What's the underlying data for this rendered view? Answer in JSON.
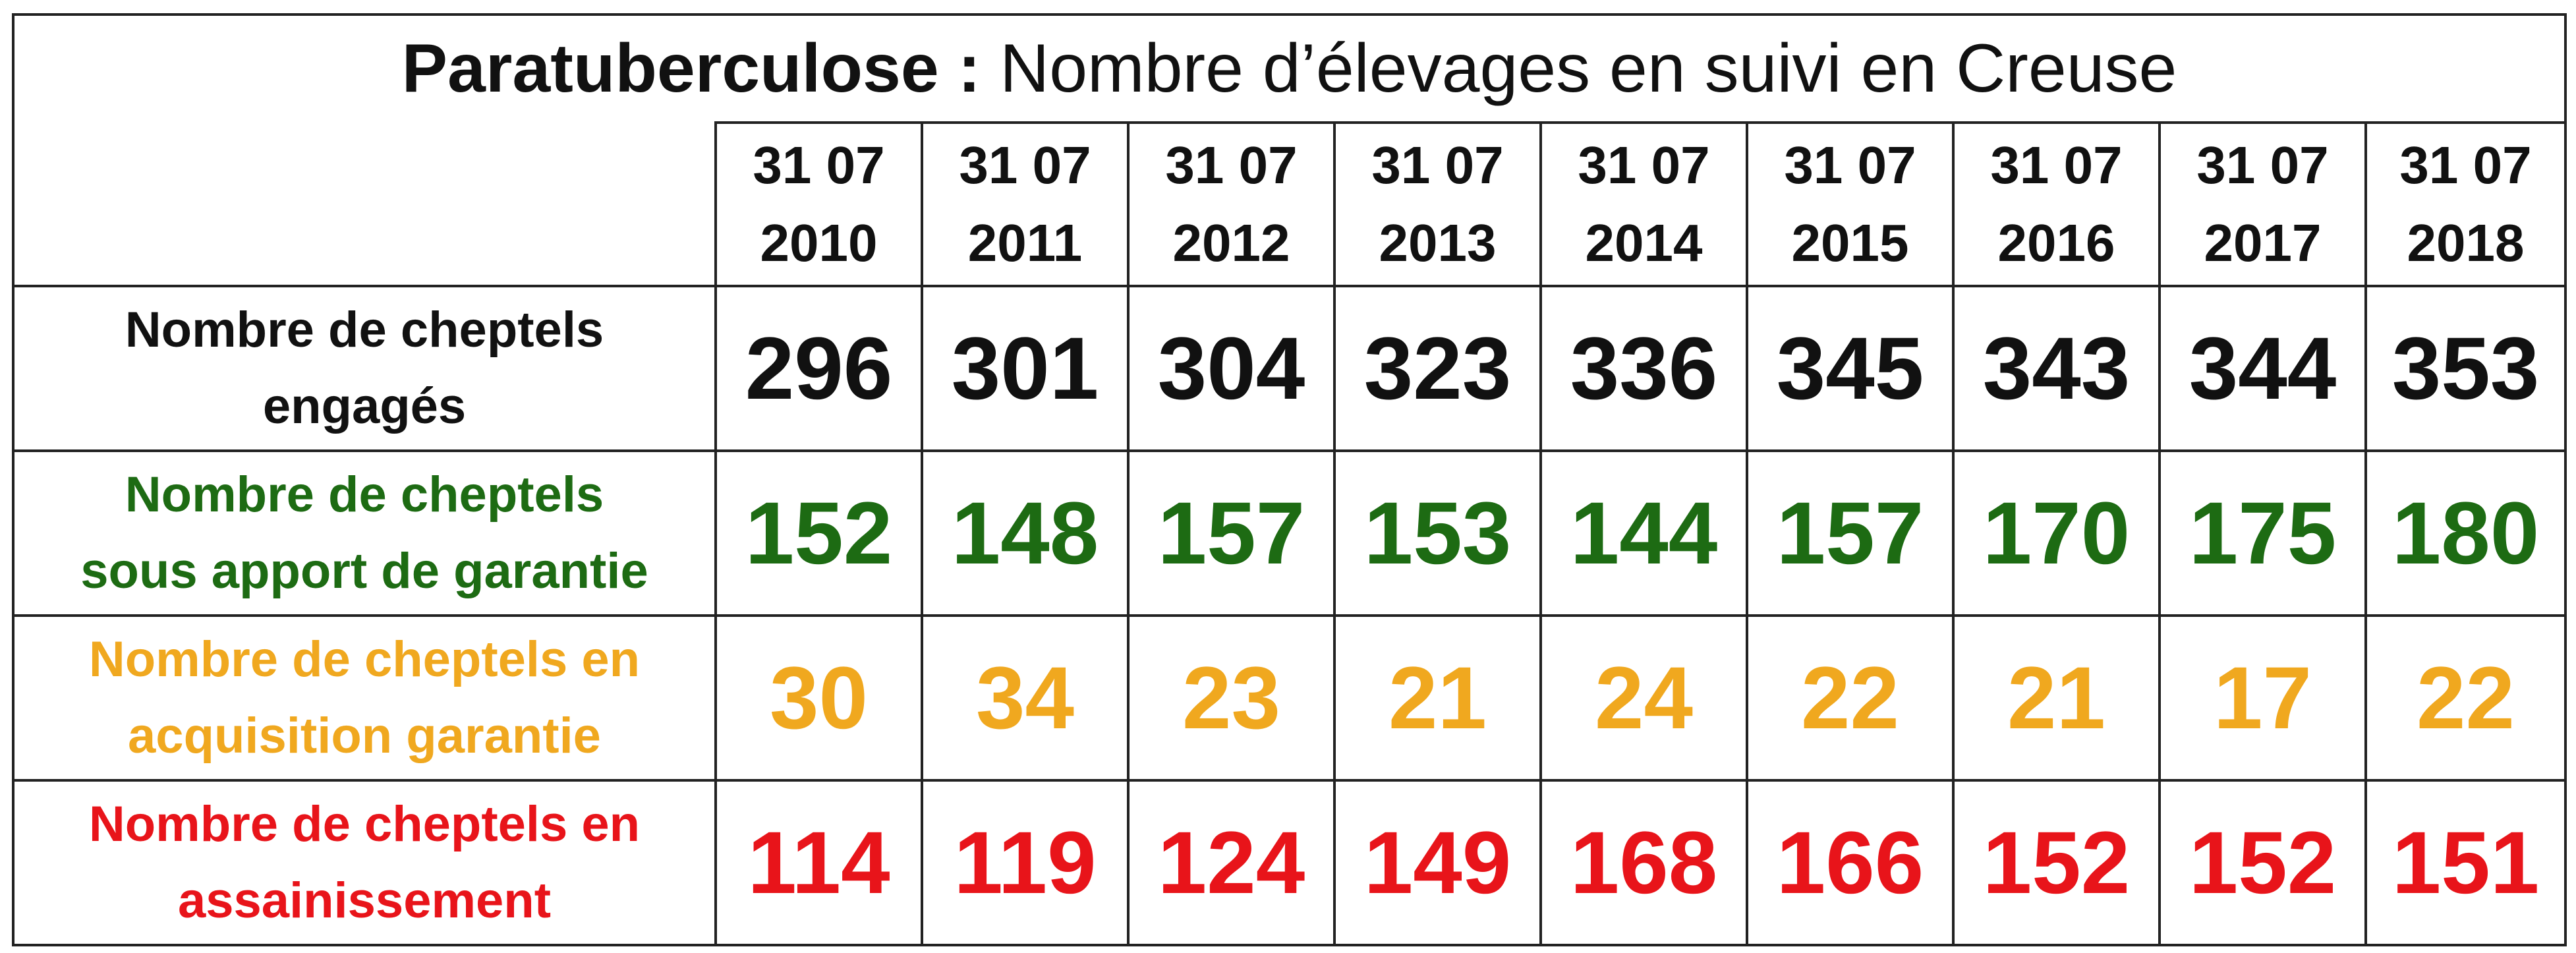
{
  "chart_data": {
    "type": "table",
    "title_bold": "Paratuberculose :",
    "title_rest": "Nombre d’élevages en suivi en Creuse",
    "columns": [
      {
        "day_month": "31 07",
        "year": "2010"
      },
      {
        "day_month": "31 07",
        "year": "2011"
      },
      {
        "day_month": "31 07",
        "year": "2012"
      },
      {
        "day_month": "31 07",
        "year": "2013"
      },
      {
        "day_month": "31 07",
        "year": "2014"
      },
      {
        "day_month": "31 07",
        "year": "2015"
      },
      {
        "day_month": "31 07",
        "year": "2016"
      },
      {
        "day_month": "31 07",
        "year": "2017"
      },
      {
        "day_month": "31 07",
        "year": "2018"
      }
    ],
    "rows": [
      {
        "label_line1": "Nombre de cheptels",
        "label_line2": "engagés",
        "color": "#111111",
        "values": [
          296,
          301,
          304,
          323,
          336,
          345,
          343,
          344,
          353
        ]
      },
      {
        "label_line1": "Nombre de cheptels",
        "label_line2": "sous apport de garantie",
        "color": "#1d6b13",
        "values": [
          152,
          148,
          157,
          153,
          144,
          157,
          170,
          175,
          180
        ]
      },
      {
        "label_line1": "Nombre de cheptels en",
        "label_line2": "acquisition garantie",
        "color": "#f0a81f",
        "values": [
          30,
          34,
          23,
          21,
          24,
          22,
          21,
          17,
          22
        ]
      },
      {
        "label_line1": "Nombre de cheptels en",
        "label_line2": "assainissement",
        "color": "#e8141a",
        "values": [
          114,
          119,
          124,
          149,
          168,
          166,
          152,
          152,
          151
        ]
      }
    ]
  }
}
